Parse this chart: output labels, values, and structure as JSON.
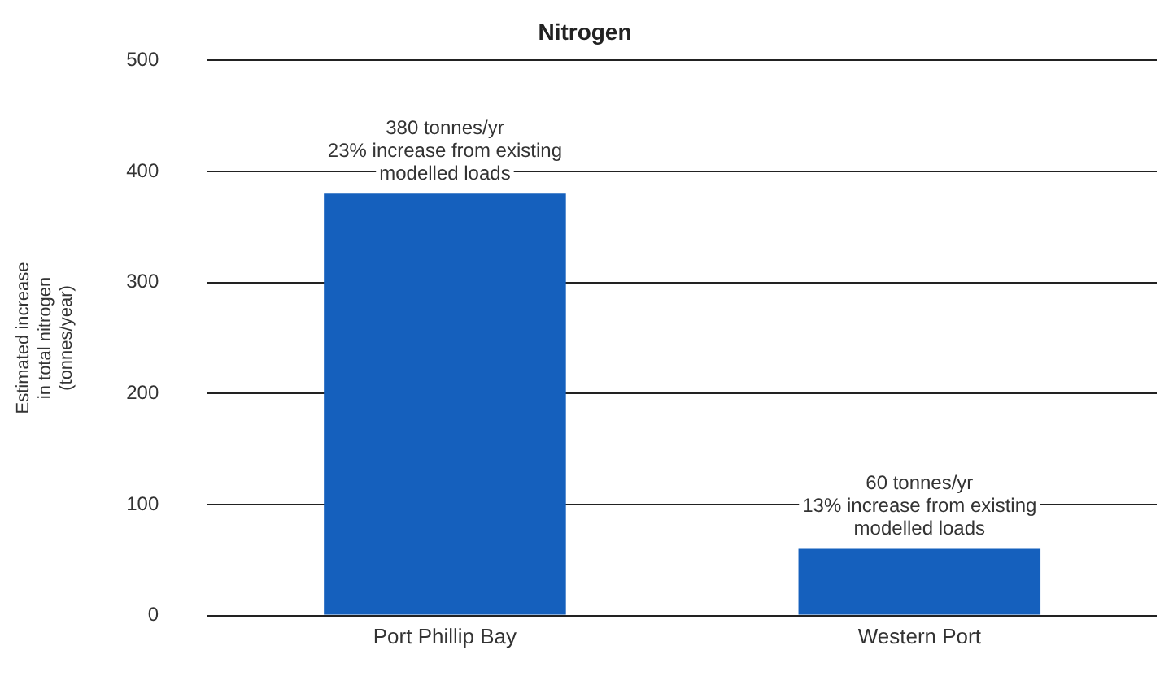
{
  "chart_data": {
    "type": "bar",
    "title": "Nitrogen",
    "ylabel": "Estimated increase in total nitrogen (tonnes/year)",
    "categories": [
      "Port Phillip Bay",
      "Western Port"
    ],
    "values": [
      380,
      60
    ],
    "value_labels": [
      "380 tonnes/yr\n23% increase from existing\nmodelled loads",
      "60 tonnes/yr\n13% increase from existing\nmodelled loads"
    ],
    "color": "#1560bd",
    "ylim": [
      0,
      500
    ],
    "yticks": [
      0,
      100,
      200,
      300,
      400,
      500
    ],
    "grid": "y",
    "legend": false
  }
}
